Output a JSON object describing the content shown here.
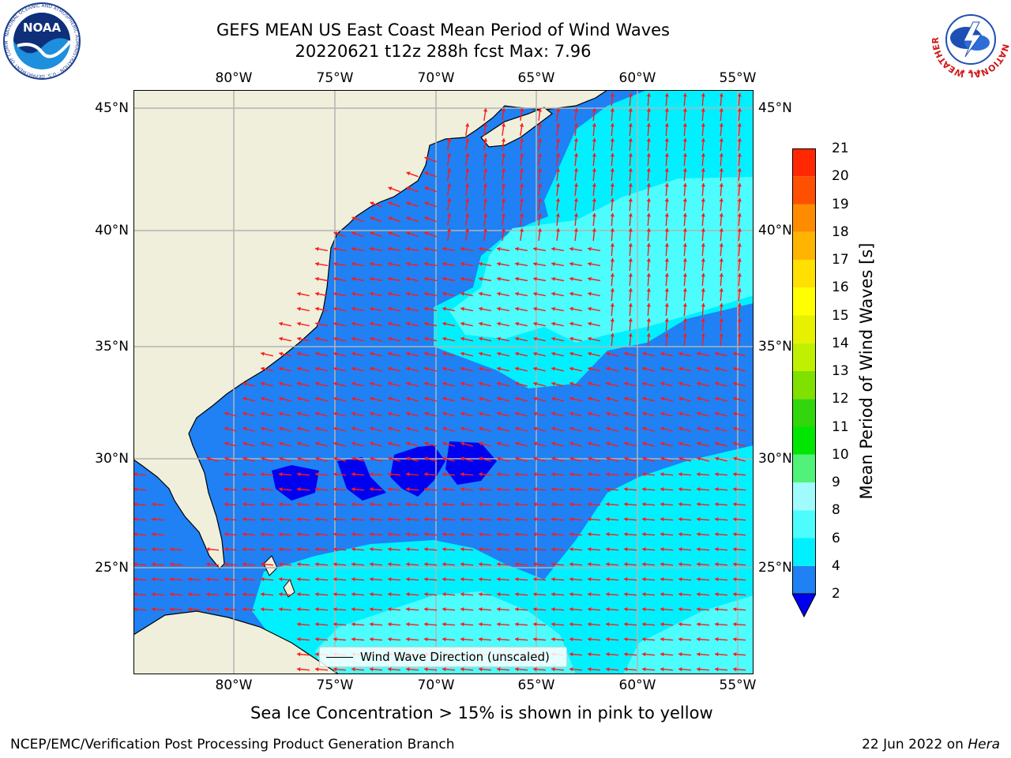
{
  "header": {
    "title_line1": "GEFS MEAN US East Coast Mean Period of Wind Waves",
    "title_line2": "20220621 t12z 288h fcst   Max: 7.96"
  },
  "map": {
    "lon_labels": [
      "80°W",
      "75°W",
      "70°W",
      "65°W",
      "60°W",
      "55°W"
    ],
    "lat_labels": [
      "45°N",
      "40°N",
      "35°N",
      "30°N",
      "25°N"
    ],
    "lon_range": [
      -85,
      -54.3
    ],
    "lat_range": [
      20.5,
      45.8
    ],
    "projection": "equirectangular",
    "gridlines": true,
    "colors": {
      "land": "#efefdb",
      "ocean_2_4": "#1f81f4",
      "ocean_4_6": "#00f0ff",
      "ocean_6_8": "#4dfcfc",
      "ocean_below_2": "#0000f0",
      "arrows": "#ff1a1a",
      "grid": "#b4b4b4"
    },
    "legend_label": "Wind Wave Direction (unscaled)"
  },
  "colorbar": {
    "label": "Mean Period of Wind Waves [s]",
    "ticks": [
      "2",
      "4",
      "6",
      "8",
      "9",
      "10",
      "11",
      "12",
      "13",
      "14",
      "15",
      "16",
      "17",
      "18",
      "19",
      "20",
      "21"
    ],
    "levels": [
      2,
      4,
      6,
      8,
      9,
      10,
      11,
      12,
      13,
      14,
      15,
      16,
      17,
      18,
      19,
      20,
      21
    ],
    "colors": [
      "#1f81f4",
      "#00f0ff",
      "#4dfcfc",
      "#a0fcfc",
      "#50f27a",
      "#00e600",
      "#32d60c",
      "#80e000",
      "#c0f000",
      "#e6f000",
      "#ffff00",
      "#ffe000",
      "#ffb400",
      "#ff8c00",
      "#ff5000",
      "#ff2800"
    ],
    "under_color": "#0000f0"
  },
  "note": "Sea Ice Concentration > 15% is shown in pink to yellow",
  "footer": {
    "left": "NCEP/EMC/Verification Post Processing Product Generation Branch",
    "right_prefix": "22 Jun 2022 on ",
    "right_machine": "Hera"
  },
  "logos": {
    "left": "noaa-logo",
    "right": "nws-logo",
    "left_text": "NOAA",
    "left_ring_text": "NATIONAL OCEANIC AND ATMOSPHERIC ADMINISTRATION · U.S. DEPARTMENT OF COMMERCE",
    "right_ring_text": "NATIONAL WEATHER SERVICE"
  }
}
